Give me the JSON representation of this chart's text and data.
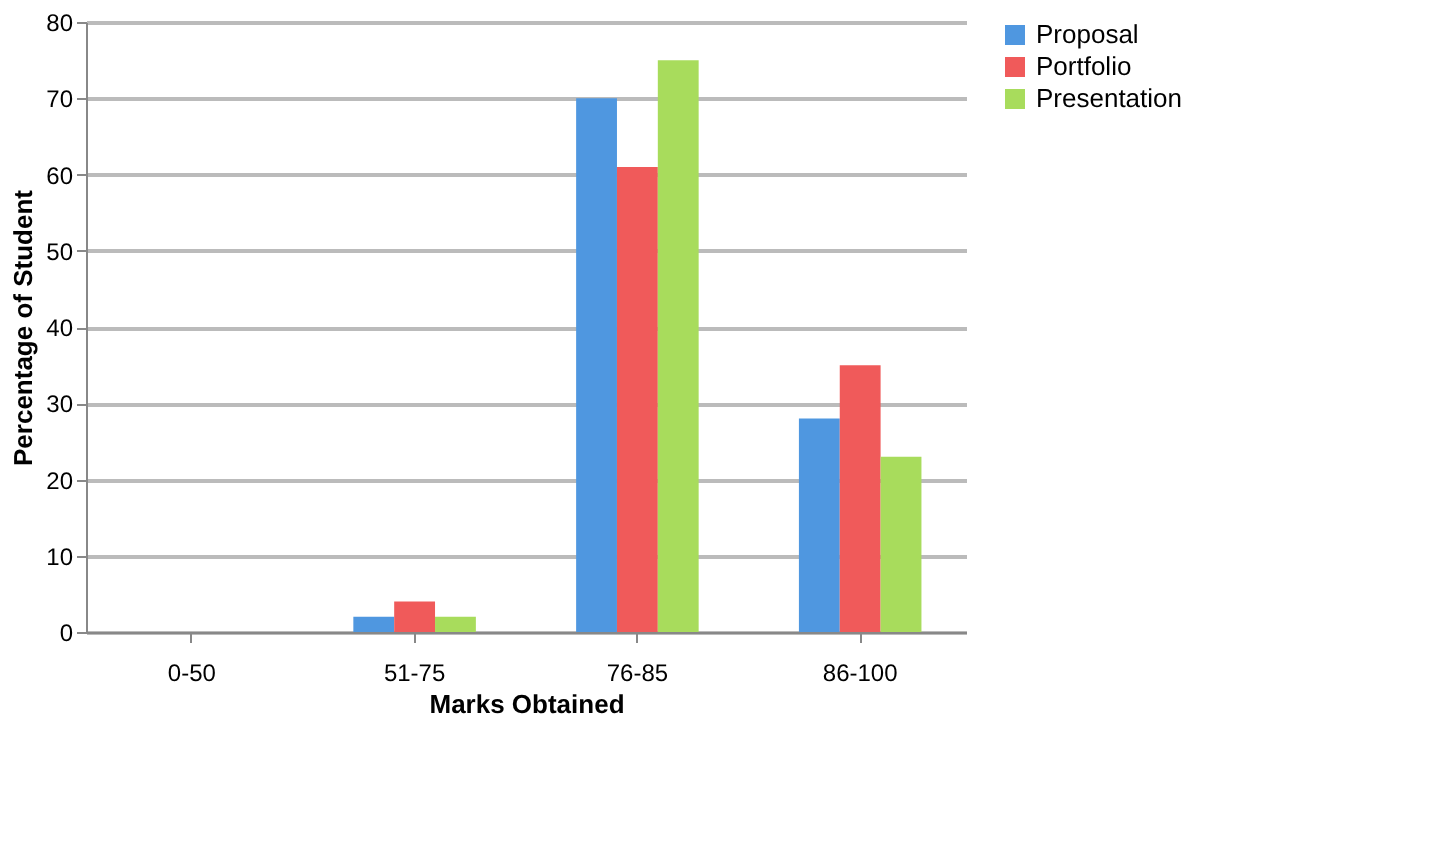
{
  "chart_data": {
    "type": "bar",
    "xlabel": "Marks Obtained",
    "ylabel": "Percentage of Student",
    "categories": [
      "0-50",
      "51-75",
      "76-85",
      "86-100"
    ],
    "series": [
      {
        "name": "Proposal",
        "color": "#4f97e0",
        "values": [
          0,
          2,
          70,
          28
        ]
      },
      {
        "name": "Portfolio",
        "color": "#f05a5a",
        "values": [
          0,
          4,
          61,
          35
        ]
      },
      {
        "name": "Presentation",
        "color": "#a8dc5c",
        "values": [
          0,
          2,
          75,
          23
        ]
      }
    ],
    "ylim": [
      0,
      80
    ],
    "yticks": [
      0,
      10,
      20,
      30,
      40,
      50,
      60,
      70,
      80
    ],
    "grid": "y",
    "legend": "right"
  }
}
